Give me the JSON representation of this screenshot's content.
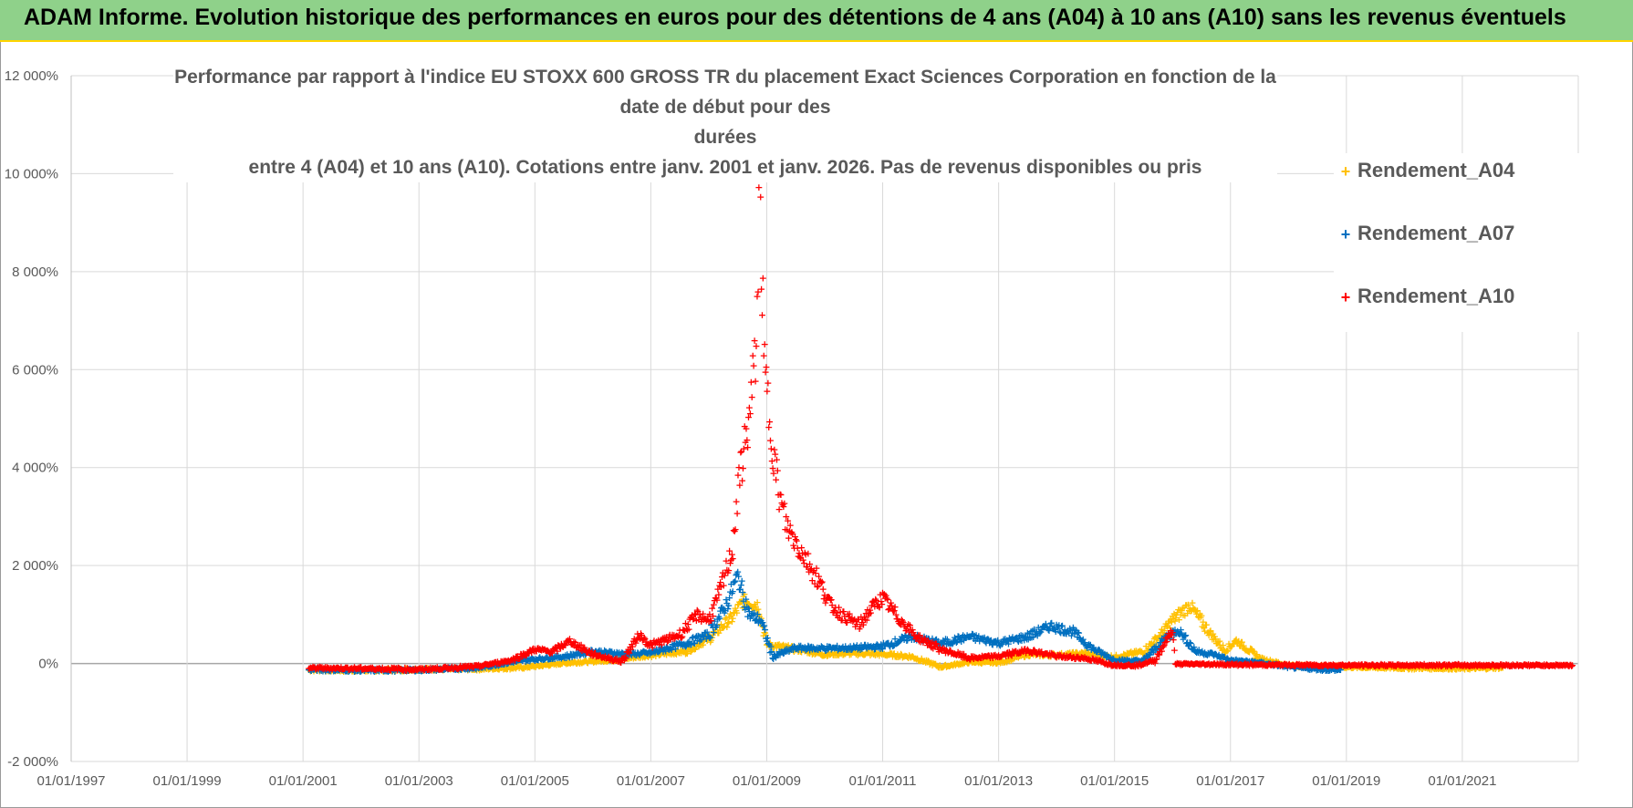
{
  "banner": {
    "title": "ADAM Informe. Evolution historique des performances en euros pour des détentions de 4 ans (A04) à 10 ans (A10) sans les revenus éventuels"
  },
  "chart_data": {
    "type": "scatter",
    "title_line1": "Performance par rapport à l'indice EU STOXX 600 GROSS TR  du placement Exact Sciences Corporation en fonction de la date de début pour des",
    "title_line2": "durées",
    "title_line3": "entre 4 (A04) et 10 ans (A10). Cotations entre janv. 2001 et janv. 2026. Pas de revenus disponibles ou pris",
    "xlabel": "",
    "ylabel": "",
    "xlim": [
      1997.0,
      2023.0
    ],
    "ylim": [
      -2000,
      12000
    ],
    "y_ticks": [
      {
        "v": -2000,
        "label": "-2 000%"
      },
      {
        "v": 0,
        "label": "0%"
      },
      {
        "v": 2000,
        "label": "2 000%"
      },
      {
        "v": 4000,
        "label": "4 000%"
      },
      {
        "v": 6000,
        "label": "6 000%"
      },
      {
        "v": 8000,
        "label": "8 000%"
      },
      {
        "v": 10000,
        "label": "10 000%"
      },
      {
        "v": 12000,
        "label": "12 000%"
      }
    ],
    "x_ticks": [
      {
        "v": 1997,
        "label": "01/01/1997"
      },
      {
        "v": 1999,
        "label": "01/01/1999"
      },
      {
        "v": 2001,
        "label": "01/01/2001"
      },
      {
        "v": 2003,
        "label": "01/01/2003"
      },
      {
        "v": 2005,
        "label": "01/01/2005"
      },
      {
        "v": 2007,
        "label": "01/01/2007"
      },
      {
        "v": 2009,
        "label": "01/01/2009"
      },
      {
        "v": 2011,
        "label": "01/01/2011"
      },
      {
        "v": 2013,
        "label": "01/01/2013"
      },
      {
        "v": 2015,
        "label": "01/01/2015"
      },
      {
        "v": 2017,
        "label": "01/01/2017"
      },
      {
        "v": 2019,
        "label": "01/01/2019"
      },
      {
        "v": 2021,
        "label": "01/01/2021"
      }
    ],
    "grid": true,
    "legend_position": "top-right",
    "series": [
      {
        "name": "Rendement_A04",
        "color": "#ffc000",
        "points": [
          [
            2001.1,
            -120
          ],
          [
            2002.0,
            -130
          ],
          [
            2003.0,
            -110
          ],
          [
            2004.0,
            -100
          ],
          [
            2004.8,
            -70
          ],
          [
            2005.5,
            20
          ],
          [
            2006.3,
            80
          ],
          [
            2007.0,
            180
          ],
          [
            2007.6,
            260
          ],
          [
            2008.0,
            520
          ],
          [
            2008.4,
            950
          ],
          [
            2008.6,
            1300
          ],
          [
            2008.85,
            1200
          ],
          [
            2009.0,
            400
          ],
          [
            2009.5,
            300
          ],
          [
            2010.0,
            200
          ],
          [
            2010.5,
            220
          ],
          [
            2011.0,
            200
          ],
          [
            2011.5,
            150
          ],
          [
            2012.0,
            -60
          ],
          [
            2012.5,
            40
          ],
          [
            2013.0,
            30
          ],
          [
            2013.5,
            200
          ],
          [
            2014.0,
            180
          ],
          [
            2014.5,
            220
          ],
          [
            2015.0,
            140
          ],
          [
            2015.5,
            260
          ],
          [
            2015.8,
            600
          ],
          [
            2016.0,
            900
          ],
          [
            2016.3,
            1200
          ],
          [
            2016.6,
            700
          ],
          [
            2016.9,
            280
          ],
          [
            2017.1,
            480
          ],
          [
            2017.5,
            120
          ],
          [
            2018.0,
            -30
          ],
          [
            2019.0,
            -60
          ],
          [
            2020.0,
            -80
          ],
          [
            2021.0,
            -90
          ],
          [
            2021.7,
            -70
          ]
        ]
      },
      {
        "name": "Rendement_A07",
        "color": "#0070c0",
        "points": [
          [
            2001.1,
            -110
          ],
          [
            2002.0,
            -130
          ],
          [
            2003.0,
            -120
          ],
          [
            2004.0,
            -80
          ],
          [
            2004.8,
            80
          ],
          [
            2005.5,
            150
          ],
          [
            2006.0,
            260
          ],
          [
            2006.6,
            200
          ],
          [
            2007.0,
            230
          ],
          [
            2007.6,
            420
          ],
          [
            2008.0,
            600
          ],
          [
            2008.3,
            1200
          ],
          [
            2008.5,
            1800
          ],
          [
            2008.7,
            1000
          ],
          [
            2008.9,
            900
          ],
          [
            2009.1,
            150
          ],
          [
            2009.5,
            330
          ],
          [
            2010.0,
            320
          ],
          [
            2010.5,
            330
          ],
          [
            2011.0,
            360
          ],
          [
            2011.5,
            560
          ],
          [
            2012.0,
            420
          ],
          [
            2012.5,
            560
          ],
          [
            2013.0,
            430
          ],
          [
            2013.5,
            560
          ],
          [
            2013.9,
            780
          ],
          [
            2014.3,
            650
          ],
          [
            2014.6,
            330
          ],
          [
            2015.0,
            80
          ],
          [
            2015.5,
            60
          ],
          [
            2015.9,
            560
          ],
          [
            2016.1,
            700
          ],
          [
            2016.4,
            260
          ],
          [
            2016.7,
            200
          ],
          [
            2017.0,
            80
          ],
          [
            2017.5,
            30
          ],
          [
            2018.0,
            -60
          ],
          [
            2018.6,
            -110
          ],
          [
            2018.9,
            -120
          ]
        ]
      },
      {
        "name": "Rendement_A10",
        "color": "#ff0000",
        "points": [
          [
            2001.1,
            -80
          ],
          [
            2002.0,
            -90
          ],
          [
            2003.0,
            -110
          ],
          [
            2004.0,
            -50
          ],
          [
            2004.6,
            80
          ],
          [
            2005.0,
            300
          ],
          [
            2005.3,
            250
          ],
          [
            2005.6,
            470
          ],
          [
            2006.0,
            200
          ],
          [
            2006.5,
            50
          ],
          [
            2006.8,
            600
          ],
          [
            2007.0,
            380
          ],
          [
            2007.5,
            600
          ],
          [
            2007.8,
            1000
          ],
          [
            2008.0,
            900
          ],
          [
            2008.2,
            1500
          ],
          [
            2008.4,
            2300
          ],
          [
            2008.55,
            4000
          ],
          [
            2008.7,
            5000
          ],
          [
            2008.82,
            6500
          ],
          [
            2008.88,
            10000
          ],
          [
            2008.95,
            6200
          ],
          [
            2009.05,
            5000
          ],
          [
            2009.2,
            3500
          ],
          [
            2009.35,
            2800
          ],
          [
            2009.6,
            2300
          ],
          [
            2009.9,
            1700
          ],
          [
            2010.1,
            1200
          ],
          [
            2010.3,
            1000
          ],
          [
            2010.6,
            800
          ],
          [
            2010.85,
            1200
          ],
          [
            2011.0,
            1350
          ],
          [
            2011.3,
            900
          ],
          [
            2011.6,
            550
          ],
          [
            2012.0,
            300
          ],
          [
            2012.5,
            120
          ],
          [
            2013.0,
            160
          ],
          [
            2013.5,
            280
          ],
          [
            2014.0,
            160
          ],
          [
            2014.5,
            120
          ],
          [
            2015.0,
            -20
          ],
          [
            2015.4,
            -30
          ],
          [
            2015.7,
            80
          ],
          [
            2015.9,
            500
          ],
          [
            2016.0,
            700
          ],
          [
            2016.05,
            0
          ],
          [
            2016.5,
            0
          ],
          [
            2017.0,
            -10
          ],
          [
            2018.0,
            -20
          ],
          [
            2019.0,
            -25
          ],
          [
            2020.0,
            -25
          ],
          [
            2021.0,
            -25
          ],
          [
            2022.0,
            -25
          ],
          [
            2022.9,
            -25
          ]
        ]
      }
    ]
  }
}
